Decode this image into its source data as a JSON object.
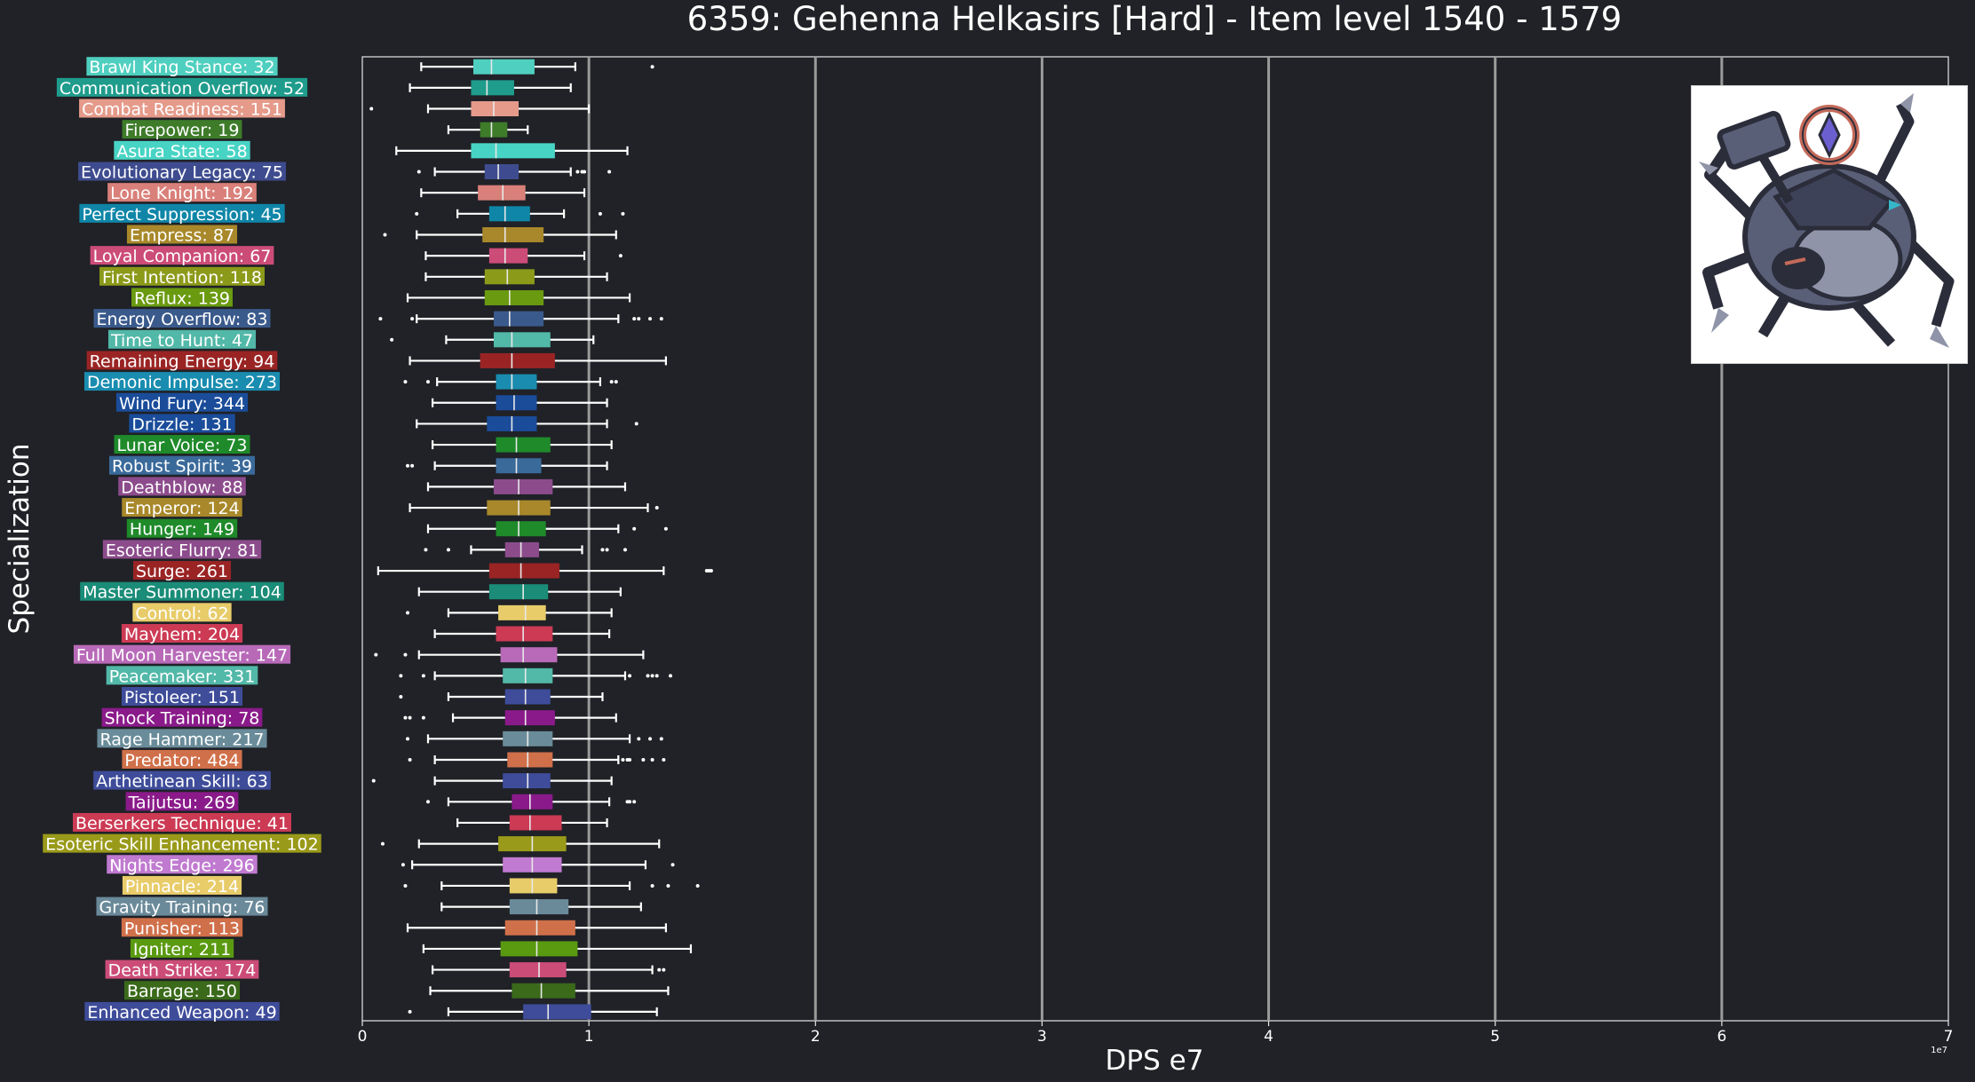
{
  "chart_data": {
    "type": "box",
    "orientation": "horizontal",
    "title": "6359: Gehenna Helkasirs [Hard] - Item level 1540 - 1579",
    "xlabel": "DPS e7",
    "ylabel": "Specialization",
    "xlim": [
      0,
      7
    ],
    "xticks": [
      "0",
      "1",
      "2",
      "3",
      "4",
      "5",
      "6",
      "7"
    ],
    "x_offset_label": "1e7",
    "grid": "vertical major gridlines",
    "series": [
      {
        "label": "Brawl King Stance: 32",
        "color": "#4fcfbf",
        "q1": 0.49,
        "median": 0.57,
        "q3": 0.76,
        "wlo": 0.26,
        "whi": 0.94,
        "fliers": [
          1.28
        ]
      },
      {
        "label": "Communication Overflow: 52",
        "color": "#1f9c8c",
        "q1": 0.48,
        "median": 0.55,
        "q3": 0.67,
        "wlo": 0.21,
        "whi": 0.92,
        "fliers": []
      },
      {
        "label": "Combat Readiness: 151",
        "color": "#e59a8a",
        "q1": 0.48,
        "median": 0.58,
        "q3": 0.69,
        "wlo": 0.29,
        "whi": 1.0,
        "fliers": [
          0.04
        ]
      },
      {
        "label": "Firepower: 19",
        "color": "#3e7c2a",
        "q1": 0.52,
        "median": 0.57,
        "q3": 0.64,
        "wlo": 0.38,
        "whi": 0.73,
        "fliers": []
      },
      {
        "label": "Asura State: 58",
        "color": "#48d4c4",
        "q1": 0.48,
        "median": 0.59,
        "q3": 0.85,
        "wlo": 0.15,
        "whi": 1.17,
        "fliers": []
      },
      {
        "label": "Evolutionary Legacy: 75",
        "color": "#3e4c8f",
        "q1": 0.54,
        "median": 0.6,
        "q3": 0.69,
        "wlo": 0.32,
        "whi": 0.92,
        "fliers": [
          0.25,
          0.95,
          0.97,
          0.98,
          1.09
        ]
      },
      {
        "label": "Lone Knight: 192",
        "color": "#d9807a",
        "q1": 0.51,
        "median": 0.62,
        "q3": 0.72,
        "wlo": 0.26,
        "whi": 0.98,
        "fliers": []
      },
      {
        "label": "Perfect Suppression: 45",
        "color": "#0f86a8",
        "q1": 0.56,
        "median": 0.63,
        "q3": 0.74,
        "wlo": 0.42,
        "whi": 0.89,
        "fliers": [
          0.24,
          1.05,
          1.15
        ]
      },
      {
        "label": "Empress: 87",
        "color": "#a8882a",
        "q1": 0.53,
        "median": 0.63,
        "q3": 0.8,
        "wlo": 0.24,
        "whi": 1.12,
        "fliers": [
          0.1
        ]
      },
      {
        "label": "Loyal Companion: 67",
        "color": "#cc4c78",
        "q1": 0.56,
        "median": 0.63,
        "q3": 0.73,
        "wlo": 0.28,
        "whi": 0.98,
        "fliers": [
          1.14
        ]
      },
      {
        "label": "First Intention: 118",
        "color": "#8c9a1a",
        "q1": 0.54,
        "median": 0.64,
        "q3": 0.76,
        "wlo": 0.28,
        "whi": 1.08,
        "fliers": []
      },
      {
        "label": "Reflux: 139",
        "color": "#6a9a10",
        "q1": 0.54,
        "median": 0.65,
        "q3": 0.8,
        "wlo": 0.2,
        "whi": 1.18,
        "fliers": []
      },
      {
        "label": "Energy Overflow: 83",
        "color": "#3a5a8c",
        "q1": 0.58,
        "median": 0.65,
        "q3": 0.8,
        "wlo": 0.24,
        "whi": 1.13,
        "fliers": [
          0.08,
          0.22,
          1.2,
          1.22,
          1.27,
          1.32
        ]
      },
      {
        "label": "Time to Hunt: 47",
        "color": "#52b8a8",
        "q1": 0.58,
        "median": 0.66,
        "q3": 0.83,
        "wlo": 0.37,
        "whi": 1.02,
        "fliers": [
          0.13
        ]
      },
      {
        "label": "Remaining Energy: 94",
        "color": "#9a2424",
        "q1": 0.52,
        "median": 0.66,
        "q3": 0.85,
        "wlo": 0.21,
        "whi": 1.34,
        "fliers": []
      },
      {
        "label": "Demonic Impulse: 273",
        "color": "#1a8cb0",
        "q1": 0.59,
        "median": 0.66,
        "q3": 0.77,
        "wlo": 0.33,
        "whi": 1.05,
        "fliers": [
          0.19,
          0.29,
          1.1,
          1.12
        ]
      },
      {
        "label": "Wind Fury: 344",
        "color": "#1a4c9a",
        "q1": 0.59,
        "median": 0.67,
        "q3": 0.77,
        "wlo": 0.31,
        "whi": 1.08,
        "fliers": []
      },
      {
        "label": "Drizzle: 131",
        "color": "#1a4c9a",
        "q1": 0.55,
        "median": 0.66,
        "q3": 0.77,
        "wlo": 0.24,
        "whi": 1.08,
        "fliers": [
          1.21
        ]
      },
      {
        "label": "Lunar Voice: 73",
        "color": "#1f8a2a",
        "q1": 0.59,
        "median": 0.68,
        "q3": 0.83,
        "wlo": 0.31,
        "whi": 1.1,
        "fliers": []
      },
      {
        "label": "Robust Spirit: 39",
        "color": "#3a6a9a",
        "q1": 0.59,
        "median": 0.68,
        "q3": 0.79,
        "wlo": 0.32,
        "whi": 1.08,
        "fliers": [
          0.2,
          0.22
        ]
      },
      {
        "label": "Deathblow: 88",
        "color": "#8c4c8c",
        "q1": 0.58,
        "median": 0.69,
        "q3": 0.84,
        "wlo": 0.29,
        "whi": 1.16,
        "fliers": []
      },
      {
        "label": "Emperor: 124",
        "color": "#a8882a",
        "q1": 0.55,
        "median": 0.69,
        "q3": 0.83,
        "wlo": 0.21,
        "whi": 1.26,
        "fliers": [
          1.3
        ]
      },
      {
        "label": "Hunger: 149",
        "color": "#1f8a2a",
        "q1": 0.59,
        "median": 0.69,
        "q3": 0.81,
        "wlo": 0.29,
        "whi": 1.13,
        "fliers": [
          1.2,
          1.34
        ]
      },
      {
        "label": "Esoteric Flurry: 81",
        "color": "#8c4c8c",
        "q1": 0.63,
        "median": 0.7,
        "q3": 0.78,
        "wlo": 0.48,
        "whi": 0.97,
        "fliers": [
          0.28,
          0.38,
          1.06,
          1.08,
          1.16
        ]
      },
      {
        "label": "Surge: 261",
        "color": "#9a2424",
        "q1": 0.56,
        "median": 0.7,
        "q3": 0.87,
        "wlo": 0.07,
        "whi": 1.33,
        "fliers": [
          1.52,
          1.53,
          1.54
        ]
      },
      {
        "label": "Master Summoner: 104",
        "color": "#1a8c78",
        "q1": 0.56,
        "median": 0.71,
        "q3": 0.82,
        "wlo": 0.25,
        "whi": 1.14,
        "fliers": []
      },
      {
        "label": "Control: 62",
        "color": "#e8cc6a",
        "q1": 0.6,
        "median": 0.72,
        "q3": 0.81,
        "wlo": 0.38,
        "whi": 1.1,
        "fliers": [
          0.2
        ]
      },
      {
        "label": "Mayhem: 204",
        "color": "#cc3a54",
        "q1": 0.59,
        "median": 0.71,
        "q3": 0.84,
        "wlo": 0.32,
        "whi": 1.09,
        "fliers": []
      },
      {
        "label": "Full Moon Harvester: 147",
        "color": "#b86ab8",
        "q1": 0.61,
        "median": 0.71,
        "q3": 0.86,
        "wlo": 0.25,
        "whi": 1.24,
        "fliers": [
          0.06,
          0.19
        ]
      },
      {
        "label": "Peacemaker: 331",
        "color": "#52b8a8",
        "q1": 0.62,
        "median": 0.72,
        "q3": 0.84,
        "wlo": 0.32,
        "whi": 1.16,
        "fliers": [
          0.17,
          0.27,
          1.18,
          1.26,
          1.28,
          1.3,
          1.36
        ]
      },
      {
        "label": "Pistoleer: 151",
        "color": "#3e4c9a",
        "q1": 0.63,
        "median": 0.72,
        "q3": 0.83,
        "wlo": 0.38,
        "whi": 1.06,
        "fliers": [
          0.17
        ]
      },
      {
        "label": "Shock Training: 78",
        "color": "#8a1a8a",
        "q1": 0.63,
        "median": 0.72,
        "q3": 0.85,
        "wlo": 0.4,
        "whi": 1.12,
        "fliers": [
          0.19,
          0.21,
          0.27
        ]
      },
      {
        "label": "Rage Hammer: 217",
        "color": "#6a8c9a",
        "q1": 0.62,
        "median": 0.73,
        "q3": 0.84,
        "wlo": 0.29,
        "whi": 1.18,
        "fliers": [
          0.2,
          1.22,
          1.27,
          1.32
        ]
      },
      {
        "label": "Predator: 484",
        "color": "#d0704a",
        "q1": 0.64,
        "median": 0.73,
        "q3": 0.84,
        "wlo": 0.32,
        "whi": 1.13,
        "fliers": [
          0.21,
          1.15,
          1.17,
          1.18,
          1.24,
          1.28,
          1.33
        ]
      },
      {
        "label": "Arthetinean Skill: 63",
        "color": "#3e4c9a",
        "q1": 0.62,
        "median": 0.73,
        "q3": 0.83,
        "wlo": 0.32,
        "whi": 1.1,
        "fliers": [
          0.05
        ]
      },
      {
        "label": "Taijutsu: 269",
        "color": "#8a1a8a",
        "q1": 0.66,
        "median": 0.74,
        "q3": 0.84,
        "wlo": 0.38,
        "whi": 1.09,
        "fliers": [
          0.29,
          1.17,
          1.18,
          1.2
        ]
      },
      {
        "label": "Berserkers Technique: 41",
        "color": "#cc3a54",
        "q1": 0.65,
        "median": 0.74,
        "q3": 0.88,
        "wlo": 0.42,
        "whi": 1.08,
        "fliers": []
      },
      {
        "label": "Esoteric Skill Enhancement: 102",
        "color": "#9a9a1a",
        "q1": 0.6,
        "median": 0.75,
        "q3": 0.9,
        "wlo": 0.25,
        "whi": 1.31,
        "fliers": [
          0.09
        ]
      },
      {
        "label": "Nights Edge: 296",
        "color": "#c07ad0",
        "q1": 0.62,
        "median": 0.75,
        "q3": 0.88,
        "wlo": 0.22,
        "whi": 1.25,
        "fliers": [
          0.18,
          1.37
        ]
      },
      {
        "label": "Pinnacle: 214",
        "color": "#e8cc6a",
        "q1": 0.65,
        "median": 0.75,
        "q3": 0.86,
        "wlo": 0.35,
        "whi": 1.18,
        "fliers": [
          0.19,
          1.28,
          1.35,
          1.48
        ]
      },
      {
        "label": "Gravity Training: 76",
        "color": "#6a8a9a",
        "q1": 0.65,
        "median": 0.77,
        "q3": 0.91,
        "wlo": 0.35,
        "whi": 1.23,
        "fliers": []
      },
      {
        "label": "Punisher: 113",
        "color": "#d0704a",
        "q1": 0.63,
        "median": 0.77,
        "q3": 0.94,
        "wlo": 0.2,
        "whi": 1.34,
        "fliers": []
      },
      {
        "label": "Igniter: 211",
        "color": "#5a9a10",
        "q1": 0.61,
        "median": 0.77,
        "q3": 0.95,
        "wlo": 0.27,
        "whi": 1.45,
        "fliers": []
      },
      {
        "label": "Death Strike: 174",
        "color": "#cc4c78",
        "q1": 0.65,
        "median": 0.78,
        "q3": 0.9,
        "wlo": 0.31,
        "whi": 1.28,
        "fliers": [
          1.31,
          1.33
        ]
      },
      {
        "label": "Barrage: 150",
        "color": "#3a6a1a",
        "q1": 0.66,
        "median": 0.79,
        "q3": 0.94,
        "wlo": 0.3,
        "whi": 1.35,
        "fliers": []
      },
      {
        "label": "Enhanced Weapon: 49",
        "color": "#3e4c9a",
        "q1": 0.71,
        "median": 0.82,
        "q3": 1.01,
        "wlo": 0.38,
        "whi": 1.3,
        "fliers": [
          0.21
        ]
      }
    ]
  },
  "boss_image": {
    "name": "gehenna-helkasirs-portrait",
    "colors": {
      "armor": "#5a5f78",
      "dark": "#2b2d3a",
      "accent": "#c46a5a",
      "blade": "#8f94a8",
      "gem": "#6b5fd0"
    }
  }
}
